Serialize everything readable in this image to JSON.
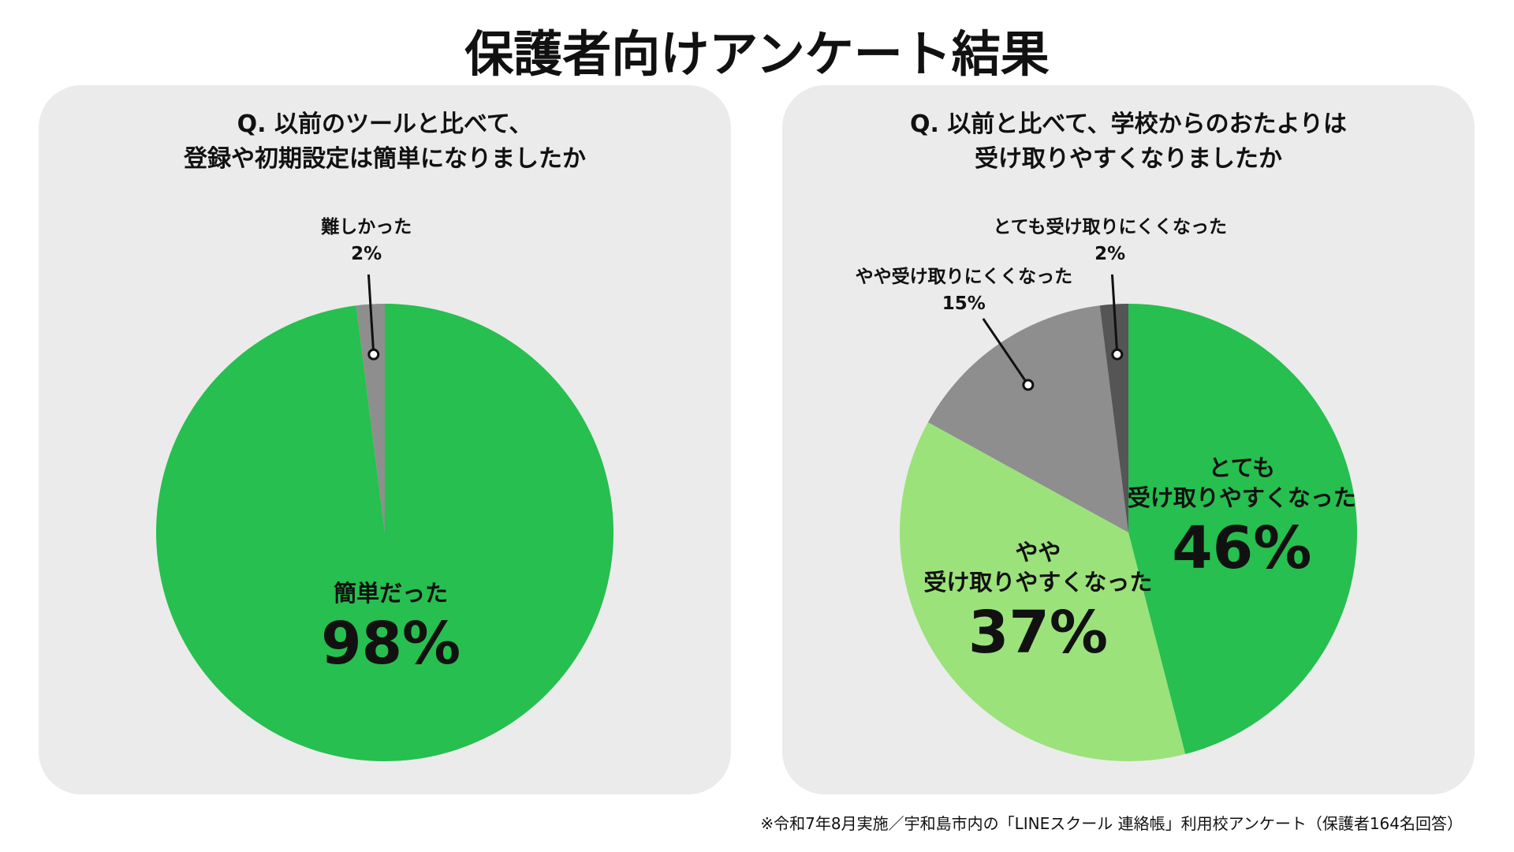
{
  "title": "保護者向けアンケート結果",
  "chart_data": [
    {
      "type": "pie",
      "title": "Q. 以前のツールと比べて、\n登録や初期設定は簡単になりましたか",
      "categories": [
        "簡単だった",
        "難しかった"
      ],
      "values": [
        98,
        2
      ],
      "value_labels": [
        "98%",
        "2%"
      ],
      "colors": [
        "#27bf4f",
        "#8e8e8e"
      ]
    },
    {
      "type": "pie",
      "title": "Q. 以前と比べて、学校からのおたよりは\n受け取りやすくなりましたか",
      "categories": [
        "とても\n受け取りやすくなった",
        "やや\n受け取りやすくなった",
        "やや受け取りにくくなった",
        "とても受け取りにくくなった"
      ],
      "values": [
        46,
        37,
        15,
        2
      ],
      "value_labels": [
        "46%",
        "37%",
        "15%",
        "2%"
      ],
      "colors": [
        "#27bf4f",
        "#9be27a",
        "#8e8e8e",
        "#555555"
      ]
    }
  ],
  "footnote": "※令和7年8月実施／宇和島市内の「LINEスクール 連絡帳」利用校アンケート（保護者164名回答）"
}
